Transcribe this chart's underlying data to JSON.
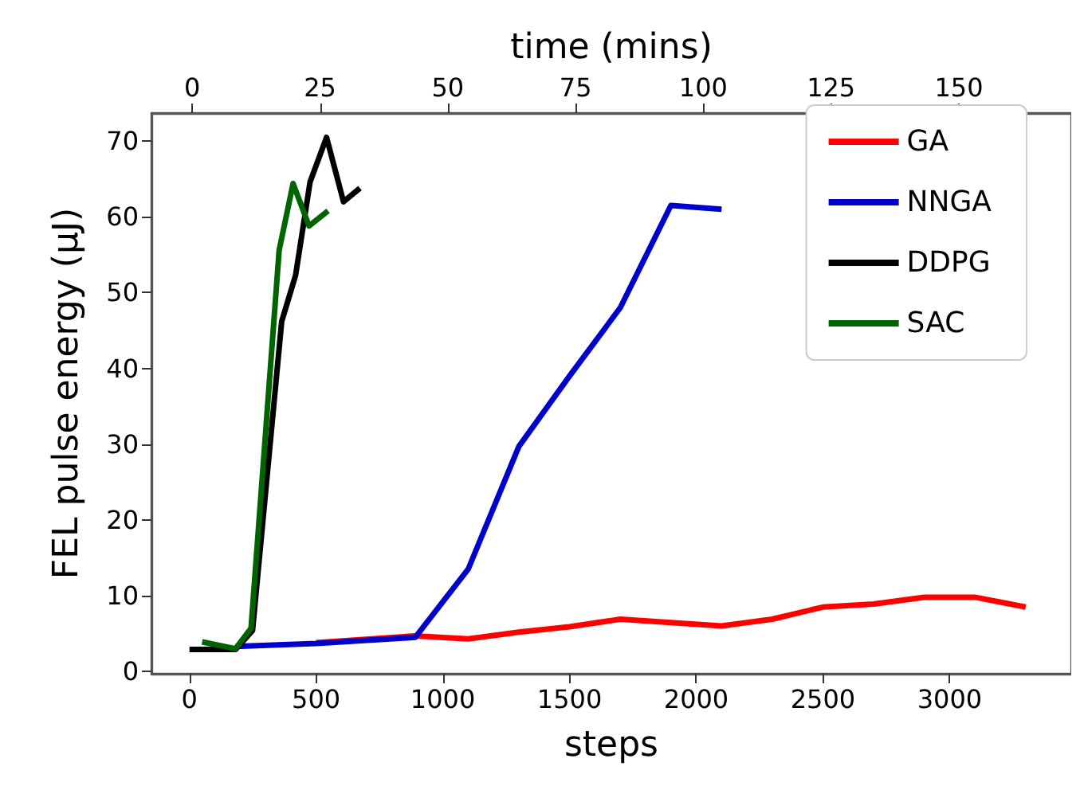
{
  "chart_data": {
    "type": "line",
    "xlabel": "steps",
    "ylabel": "FEL pulse energy (μJ)",
    "x2label": "time (mins)",
    "xlim": [
      -150,
      3480
    ],
    "xticks": [
      0,
      500,
      1000,
      1500,
      2000,
      2500,
      3000
    ],
    "x2lim": [
      -8,
      172
    ],
    "x2ticks": [
      0,
      25,
      50,
      75,
      100,
      125,
      150
    ],
    "ylim": [
      -0.3,
      73.7
    ],
    "yticks": [
      0,
      10,
      20,
      30,
      40,
      50,
      60,
      70
    ],
    "grid": false,
    "legend": "top right",
    "marker": "none",
    "line_style": "solid",
    "series": [
      {
        "name": "GA",
        "color": "#ff0000",
        "x": [
          500,
          891,
          1100,
          1300,
          1500,
          1700,
          2100,
          2300,
          2500,
          2700,
          2900,
          3100,
          3300
        ],
        "values": [
          3.8,
          4.7,
          4.3,
          5.2,
          5.9,
          6.9,
          6.0,
          6.9,
          8.5,
          8.9,
          9.8,
          9.8,
          8.5
        ]
      },
      {
        "name": "NNGA",
        "color": "#0000cc",
        "x": [
          182,
          500,
          891,
          1100,
          1300,
          1500,
          1700,
          1900,
          2100
        ],
        "values": [
          3.3,
          3.7,
          4.5,
          13.5,
          29.7,
          39,
          48,
          61.5,
          61
        ]
      },
      {
        "name": "DDPG",
        "color": "#000000",
        "x": [
          0,
          182,
          249,
          364,
          419,
          476,
          541,
          608,
          673
        ],
        "values": [
          2.9,
          2.9,
          5.4,
          46.2,
          52.3,
          64.6,
          70.5,
          62,
          63.8
        ]
      },
      {
        "name": "SAC",
        "color": "#006400",
        "x": [
          50,
          182,
          243,
          354,
          409,
          472,
          547
        ],
        "values": [
          3.9,
          3.0,
          5.7,
          55.6,
          64.4,
          58.8,
          60.8
        ]
      }
    ]
  }
}
